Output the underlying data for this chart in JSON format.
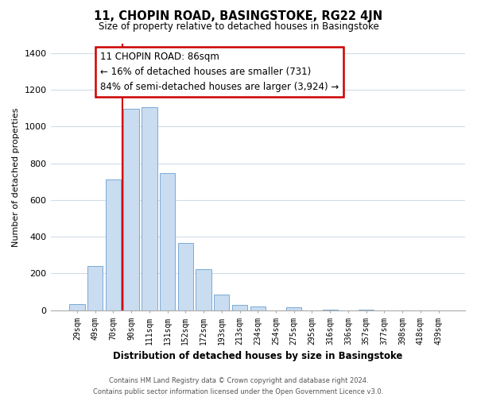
{
  "title": "11, CHOPIN ROAD, BASINGSTOKE, RG22 4JN",
  "subtitle": "Size of property relative to detached houses in Basingstoke",
  "xlabel": "Distribution of detached houses by size in Basingstoke",
  "ylabel": "Number of detached properties",
  "bar_labels": [
    "29sqm",
    "49sqm",
    "70sqm",
    "90sqm",
    "111sqm",
    "131sqm",
    "152sqm",
    "172sqm",
    "193sqm",
    "213sqm",
    "234sqm",
    "254sqm",
    "275sqm",
    "295sqm",
    "316sqm",
    "336sqm",
    "357sqm",
    "377sqm",
    "398sqm",
    "418sqm",
    "439sqm"
  ],
  "bar_values": [
    35,
    240,
    710,
    1095,
    1105,
    745,
    365,
    225,
    85,
    30,
    20,
    0,
    15,
    0,
    5,
    0,
    5,
    0,
    0,
    0,
    0
  ],
  "bar_color": "#c9dcf0",
  "bar_edge_color": "#7aaad4",
  "vline_color": "#cc0000",
  "ylim": [
    0,
    1450
  ],
  "yticks": [
    0,
    200,
    400,
    600,
    800,
    1000,
    1200,
    1400
  ],
  "annotation_title": "11 CHOPIN ROAD: 86sqm",
  "annotation_line1": "← 16% of detached houses are smaller (731)",
  "annotation_line2": "84% of semi-detached houses are larger (3,924) →",
  "annotation_box_color": "#ffffff",
  "annotation_box_edge": "#cc0000",
  "footer_line1": "Contains HM Land Registry data © Crown copyright and database right 2024.",
  "footer_line2": "Contains public sector information licensed under the Open Government Licence v3.0.",
  "background_color": "#ffffff",
  "grid_color": "#d0dde8"
}
